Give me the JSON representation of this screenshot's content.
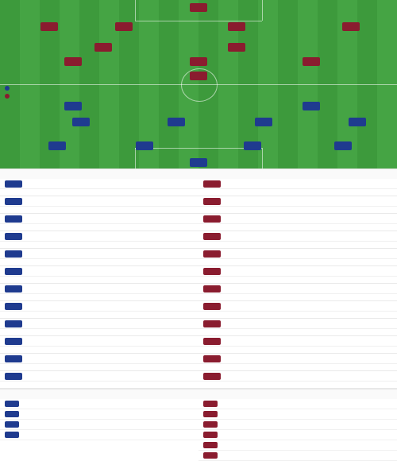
{
  "pitch": {
    "title": "",
    "subtitle": "",
    "home_team_label": "",
    "away_team_label": "",
    "home_formation": "",
    "away_formation": "",
    "home_coach": "",
    "away_coach": "",
    "center_label": "",
    "home_players": [
      {
        "num": "",
        "name": "",
        "rating": ""
      },
      {
        "num": "",
        "name": "",
        "rating": ""
      },
      {
        "num": "",
        "name": "",
        "rating": ""
      },
      {
        "num": "",
        "name": "",
        "rating": ""
      },
      {
        "num": "",
        "name": "",
        "rating": ""
      },
      {
        "num": "",
        "name": "",
        "rating": ""
      },
      {
        "num": "",
        "name": "",
        "rating": ""
      },
      {
        "num": "",
        "name": "",
        "rating": ""
      },
      {
        "num": "",
        "name": "",
        "rating": ""
      },
      {
        "num": "",
        "name": "",
        "rating": ""
      },
      {
        "num": "",
        "name": "",
        "rating": ""
      }
    ],
    "away_players": [
      {
        "num": "",
        "name": "",
        "rating": ""
      },
      {
        "num": "",
        "name": "",
        "rating": ""
      },
      {
        "num": "",
        "name": "",
        "rating": ""
      },
      {
        "num": "",
        "name": "",
        "rating": ""
      },
      {
        "num": "",
        "name": "",
        "rating": ""
      },
      {
        "num": "",
        "name": "",
        "rating": ""
      },
      {
        "num": "",
        "name": "",
        "rating": ""
      },
      {
        "num": "",
        "name": "",
        "rating": ""
      },
      {
        "num": "",
        "name": "",
        "rating": ""
      },
      {
        "num": "",
        "name": "",
        "rating": ""
      },
      {
        "num": "",
        "name": "",
        "rating": ""
      }
    ]
  },
  "subs": {
    "title": "",
    "home": [
      {
        "num": "",
        "name": "",
        "pos": "",
        "sub": ""
      },
      {
        "num": "",
        "name": "",
        "pos": "",
        "sub": ""
      },
      {
        "num": "",
        "name": "",
        "pos": "",
        "sub": ""
      },
      {
        "num": "",
        "name": "",
        "pos": "",
        "sub": ""
      },
      {
        "num": "",
        "name": "",
        "pos": "",
        "sub": ""
      },
      {
        "num": "",
        "name": "",
        "pos": "",
        "sub": ""
      },
      {
        "num": "",
        "name": "",
        "pos": "",
        "sub": ""
      },
      {
        "num": "",
        "name": "",
        "pos": "",
        "sub": ""
      },
      {
        "num": "",
        "name": "",
        "pos": "",
        "sub": ""
      },
      {
        "num": "",
        "name": "",
        "pos": "",
        "sub": ""
      },
      {
        "num": "",
        "name": "",
        "pos": "",
        "sub": ""
      },
      {
        "num": "",
        "name": "",
        "pos": "",
        "sub": ""
      }
    ],
    "away": [
      {
        "num": "",
        "name": "",
        "pos": "",
        "sub": ""
      },
      {
        "num": "",
        "name": "",
        "pos": "",
        "sub": ""
      },
      {
        "num": "",
        "name": "",
        "pos": "",
        "sub": ""
      },
      {
        "num": "",
        "name": "",
        "pos": "",
        "sub": ""
      },
      {
        "num": "",
        "name": "",
        "pos": "",
        "sub": ""
      },
      {
        "num": "",
        "name": "",
        "pos": "",
        "sub": ""
      },
      {
        "num": "",
        "name": "",
        "pos": "",
        "sub": ""
      },
      {
        "num": "",
        "name": "",
        "pos": "",
        "sub": ""
      },
      {
        "num": "",
        "name": "",
        "pos": "",
        "sub": ""
      },
      {
        "num": "",
        "name": "",
        "pos": "",
        "sub": ""
      },
      {
        "num": "",
        "name": "",
        "pos": "",
        "sub": ""
      },
      {
        "num": "",
        "name": "",
        "pos": "",
        "sub": ""
      }
    ]
  },
  "injuries": {
    "title": "",
    "home": [
      {
        "name": "",
        "reason": ""
      },
      {
        "name": "",
        "reason": ""
      },
      {
        "name": "",
        "reason": ""
      },
      {
        "name": "",
        "reason": ""
      }
    ],
    "away": [
      {
        "name": "",
        "reason": ""
      },
      {
        "name": "",
        "reason": ""
      },
      {
        "name": "",
        "reason": ""
      },
      {
        "name": "",
        "reason": ""
      },
      {
        "name": "",
        "reason": ""
      },
      {
        "name": "",
        "reason": ""
      }
    ]
  }
}
